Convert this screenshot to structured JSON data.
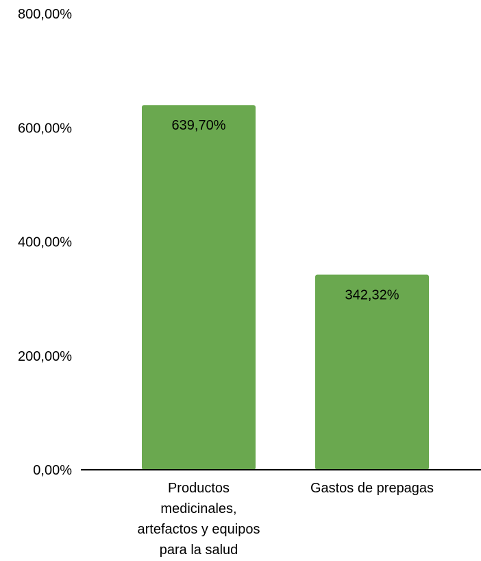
{
  "chart_data": {
    "type": "bar",
    "categories": [
      "Productos medicinales, artefactos y equipos para la salud",
      "Gastos de prepagas"
    ],
    "category_lines": [
      [
        "Productos",
        "medicinales,",
        "artefactos y equipos",
        "para la salud"
      ],
      [
        "Gastos de prepagas"
      ]
    ],
    "values": [
      639.7,
      342.32
    ],
    "data_labels": [
      "639,70%",
      "342,32%"
    ],
    "ylim": [
      0,
      800
    ],
    "yticks": [
      0,
      200,
      400,
      600,
      800
    ],
    "ytick_labels": [
      "0,00%",
      "200,00%",
      "400,00%",
      "600,00%",
      "800,00%"
    ],
    "title": "",
    "xlabel": "",
    "ylabel": "",
    "grid": false,
    "legend": "none",
    "bar_color": "#6aa84f",
    "axis_color": "#000000"
  }
}
